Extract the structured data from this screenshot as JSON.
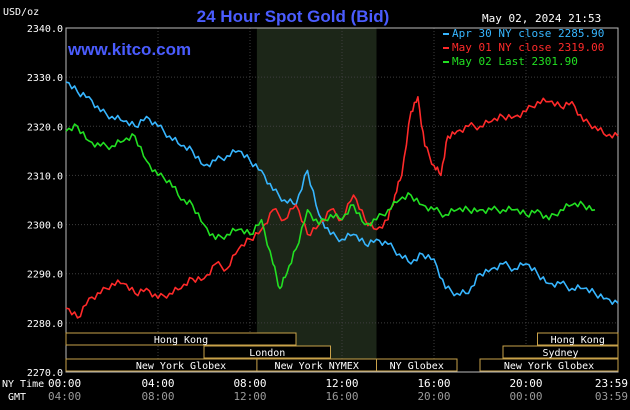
{
  "chart_data": {
    "type": "line",
    "title": "24 Hour Spot Gold (Bid)",
    "ylabel": "USD/oz",
    "ylim": [
      2270,
      2340
    ],
    "yticks": [
      "2340.0",
      "2330.0",
      "2320.0",
      "2310.0",
      "2300.0",
      "2290.0",
      "2280.0",
      "2270.0"
    ],
    "xlim": [
      0,
      24
    ],
    "xticks_ny": [
      "00:00",
      "04:00",
      "08:00",
      "12:00",
      "16:00",
      "20:00",
      "23:59"
    ],
    "xticks_gmt": [
      "04:00",
      "08:00",
      "12:00",
      "16:00",
      "20:00",
      "00:00",
      "03:59"
    ],
    "x_row_label_ny": "NY Time",
    "x_row_label_gmt": "GMT",
    "timestamp": "May 02, 2024 21:53",
    "watermark": "www.kitco.com",
    "grid": true,
    "legend_position": "top-right",
    "series": [
      {
        "name": "Apr 30 NY close 2285.90",
        "color": "#37b6ff",
        "x": [
          0,
          0.5,
          1,
          1.5,
          2,
          2.5,
          3,
          3.5,
          4,
          4.5,
          5,
          5.5,
          6,
          6.5,
          7,
          7.5,
          8,
          8.5,
          9,
          9.5,
          10,
          10.5,
          11,
          11.5,
          12,
          12.5,
          13,
          13.5,
          14,
          14.5,
          15,
          15.5,
          16,
          16.5,
          17,
          17.5,
          18,
          18.5,
          19,
          19.5,
          20,
          20.5,
          21,
          21.5,
          22,
          22.5,
          23,
          23.5,
          24
        ],
        "y": [
          2329,
          2327,
          2326,
          2323,
          2322,
          2321,
          2320,
          2322,
          2320,
          2318,
          2316,
          2315,
          2312,
          2313,
          2314,
          2315,
          2313,
          2311,
          2307,
          2305,
          2304,
          2311,
          2302,
          2298,
          2297,
          2298,
          2296,
          2297,
          2296,
          2294,
          2292,
          2294,
          2293,
          2287,
          2286,
          2286,
          2290,
          2291,
          2292,
          2291,
          2292,
          2290,
          2288,
          2288,
          2287,
          2287,
          2286,
          2285,
          2284
        ]
      },
      {
        "name": "May 01 NY close 2319.00",
        "color": "#ff2a2a",
        "x": [
          0,
          0.5,
          1,
          1.5,
          2,
          2.5,
          3,
          3.5,
          4,
          4.5,
          5,
          5.5,
          6,
          6.5,
          7,
          7.5,
          8,
          8.5,
          9,
          9.5,
          10,
          10.5,
          11,
          11.5,
          12,
          12.5,
          13,
          13.5,
          14,
          14.3,
          14.6,
          15,
          15.3,
          15.6,
          16,
          16.3,
          16.6,
          17,
          17.5,
          18,
          18.5,
          19,
          19.5,
          20,
          20.5,
          21,
          21.5,
          22,
          22.5,
          23,
          23.5,
          24
        ],
        "y": [
          2283,
          2281,
          2285,
          2286,
          2288,
          2288,
          2286,
          2287,
          2285,
          2286,
          2287,
          2289,
          2289,
          2292,
          2291,
          2295,
          2297,
          2299,
          2303,
          2301,
          2304,
          2298,
          2300,
          2303,
          2301,
          2306,
          2301,
          2299,
          2301,
          2306,
          2310,
          2323,
          2326,
          2316,
          2312,
          2310,
          2318,
          2319,
          2320,
          2320,
          2321,
          2322,
          2322,
          2323,
          2325,
          2325,
          2324,
          2325,
          2321,
          2320,
          2318,
          2318
        ]
      },
      {
        "name": "May 02 Last 2301.90",
        "color": "#22e022",
        "x": [
          0,
          0.5,
          1,
          1.5,
          2,
          2.5,
          3,
          3.5,
          4,
          4.5,
          5,
          5.5,
          6,
          6.5,
          7,
          7.5,
          8,
          8.5,
          9,
          9.3,
          9.6,
          10,
          10.5,
          11,
          11.5,
          12,
          12.5,
          13,
          13.5,
          14,
          14.5,
          15,
          15.5,
          16,
          16.5,
          17,
          17.5,
          18,
          18.5,
          19,
          19.5,
          20,
          20.5,
          21,
          21.5,
          22,
          22.5,
          23
        ],
        "y": [
          2319,
          2320,
          2317,
          2316,
          2316,
          2317,
          2318,
          2313,
          2310,
          2309,
          2305,
          2304,
          2300,
          2297,
          2298,
          2299,
          2298,
          2301,
          2292,
          2287,
          2290,
          2295,
          2303,
          2300,
          2302,
          2301,
          2304,
          2300,
          2301,
          2303,
          2305,
          2306,
          2304,
          2303,
          2302,
          2303,
          2303,
          2303,
          2303,
          2303,
          2303,
          2302,
          2303,
          2301,
          2303,
          2304,
          2304,
          2303
        ]
      }
    ],
    "session_bars": [
      {
        "label": "Hong Kong",
        "start": 0,
        "end": 10,
        "row": 0
      },
      {
        "label": "London",
        "start": 6,
        "end": 11.5,
        "row": 1
      },
      {
        "label": "New York Globex",
        "start": 0,
        "end": 10,
        "row": 2
      },
      {
        "label": "New York NYMEX",
        "start": 8.3,
        "end": 13.5,
        "row": 2
      },
      {
        "label": "NY Globex",
        "start": 13.5,
        "end": 17,
        "row": 2
      },
      {
        "label": "Hong Kong",
        "start": 20.5,
        "end": 24,
        "row": 0
      },
      {
        "label": "Sydney",
        "start": 19,
        "end": 24,
        "row": 1
      },
      {
        "label": "New York Globex",
        "start": 18,
        "end": 24,
        "row": 2
      }
    ],
    "highlight_range": [
      8.3,
      13.5
    ]
  }
}
